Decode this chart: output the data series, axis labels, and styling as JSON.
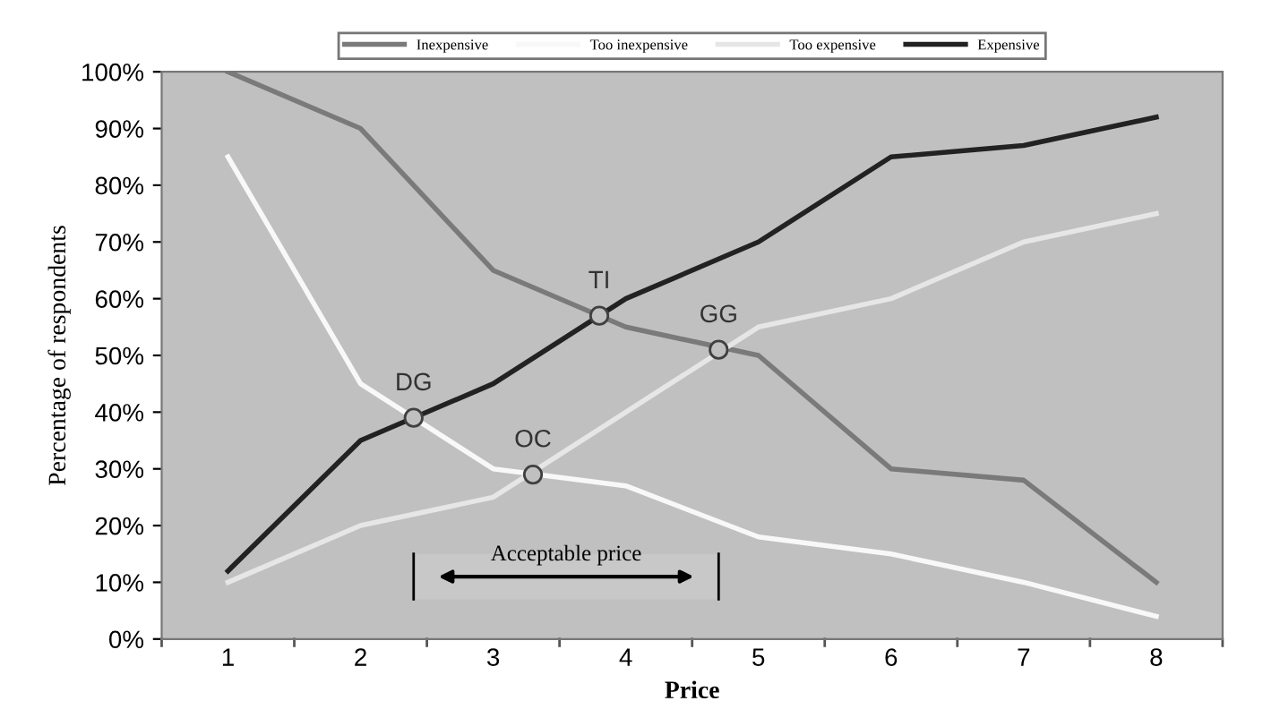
{
  "chart_data": {
    "type": "line",
    "xlabel": "Price",
    "ylabel": "Percentage of respondents",
    "x": [
      1,
      2,
      3,
      4,
      5,
      6,
      7,
      8
    ],
    "xlim": [
      0.5,
      8.5
    ],
    "xticks": [
      {
        "value": 1,
        "label": "1"
      },
      {
        "value": 2,
        "label": "2"
      },
      {
        "value": 3,
        "label": "3"
      },
      {
        "value": 4,
        "label": "4"
      },
      {
        "value": 5,
        "label": "5"
      },
      {
        "value": 6,
        "label": "6"
      },
      {
        "value": 7,
        "label": "7"
      },
      {
        "value": 8,
        "label": "8"
      }
    ],
    "ylim": [
      0,
      100
    ],
    "yticks": [
      {
        "value": 0,
        "label": "0%"
      },
      {
        "value": 10,
        "label": "10%"
      },
      {
        "value": 20,
        "label": "20%"
      },
      {
        "value": 30,
        "label": "30%"
      },
      {
        "value": 40,
        "label": "40%"
      },
      {
        "value": 50,
        "label": "50%"
      },
      {
        "value": 60,
        "label": "60%"
      },
      {
        "value": 70,
        "label": "70%"
      },
      {
        "value": 80,
        "label": "80%"
      },
      {
        "value": 90,
        "label": "90%"
      },
      {
        "value": 100,
        "label": "100%"
      }
    ],
    "series": [
      {
        "name": "Inexpensive",
        "color": "#7a7a7a",
        "values": [
          100,
          90,
          65,
          55,
          50,
          30,
          28,
          10
        ]
      },
      {
        "name": "Too inexpensive",
        "color": "#f8f8f8",
        "values": [
          85,
          45,
          30,
          27,
          18,
          15,
          10,
          4
        ]
      },
      {
        "name": "Too expensive",
        "color": "#e6e6e6",
        "values": [
          10,
          20,
          25,
          40,
          55,
          60,
          70,
          75
        ]
      },
      {
        "name": "Expensive",
        "color": "#222222",
        "values": [
          12,
          35,
          45,
          60,
          70,
          85,
          87,
          92
        ]
      }
    ],
    "annotations": [
      {
        "text": "DG",
        "x": 2.4,
        "y": 39
      },
      {
        "text": "OC",
        "x": 3.3,
        "y": 29
      },
      {
        "text": "TI",
        "x": 3.8,
        "y": 57
      },
      {
        "text": "GG",
        "x": 4.7,
        "y": 51
      }
    ],
    "bands": [
      {
        "axis": "x",
        "from": 2.4,
        "to": 4.7,
        "label": "Acceptable price"
      }
    ],
    "legend": "top",
    "grid": false,
    "marker": "none",
    "line_style": "solid"
  }
}
